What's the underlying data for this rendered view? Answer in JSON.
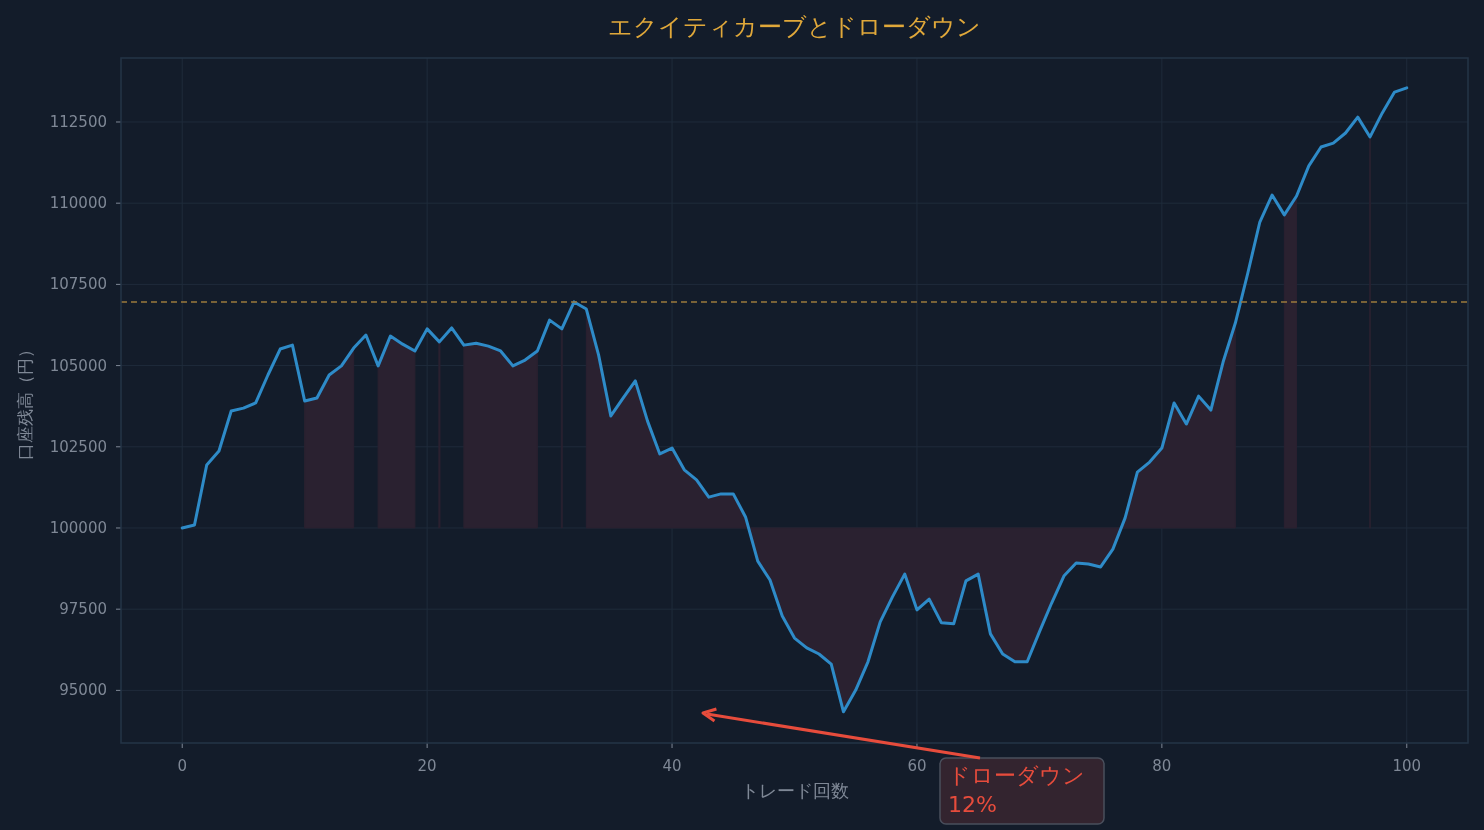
{
  "chart_data": {
    "type": "line",
    "title": "エクイティカーブとドローダウン",
    "xlabel": "トレード回数",
    "ylabel": "口座残高（円）",
    "x": [
      0,
      1,
      2,
      3,
      4,
      5,
      6,
      7,
      8,
      9,
      10,
      11,
      12,
      13,
      14,
      15,
      16,
      17,
      18,
      19,
      20,
      21,
      22,
      23,
      24,
      25,
      26,
      27,
      28,
      29,
      30,
      31,
      32,
      33,
      34,
      35,
      36,
      37,
      38,
      39,
      40,
      41,
      42,
      43,
      44,
      45,
      46,
      47,
      48,
      49,
      50,
      51,
      52,
      53,
      54,
      55,
      56,
      57,
      58,
      59,
      60,
      61,
      62,
      63,
      64,
      65,
      66,
      67,
      68,
      69,
      70,
      71,
      72,
      73,
      74,
      75,
      76,
      77,
      78,
      79,
      80,
      81,
      82,
      83,
      84,
      85,
      86,
      87,
      88,
      89,
      90,
      91,
      92,
      93,
      94,
      95,
      96,
      97,
      98,
      99,
      100
    ],
    "series": [
      {
        "color": "#2e8bc8",
        "values": [
          100000,
          100090,
          101940,
          102370,
          103600,
          103690,
          103850,
          104710,
          105510,
          105630,
          103910,
          104000,
          104710,
          104990,
          105540,
          105940,
          104990,
          105910,
          105660,
          105450,
          106130,
          105730,
          106160,
          105630,
          105690,
          105600,
          105450,
          104990,
          105170,
          105450,
          106400,
          106130,
          106960,
          106740,
          105330,
          103450,
          104000,
          104530,
          103290,
          102280,
          102460,
          101790,
          101480,
          100950,
          101050,
          101050,
          100340,
          98980,
          98400,
          97290,
          96610,
          96310,
          96120,
          95810,
          94340,
          95010,
          95880,
          97110,
          97880,
          98580,
          97480,
          97810,
          97080,
          97050,
          98370,
          98580,
          96740,
          96120,
          95880,
          95880,
          96800,
          97690,
          98520,
          98920,
          98890,
          98800,
          99350,
          100310,
          101720,
          102030,
          102460,
          103850,
          103200,
          104060,
          103630,
          105110,
          106310,
          107820,
          109420,
          110250,
          109640,
          110220,
          111150,
          111730,
          111850,
          112160,
          112650,
          112040,
          112780,
          113420,
          113550
        ]
      },
      {
        "type": "area",
        "color": "#2a2130",
        "values": [
          null,
          null,
          null,
          null,
          null,
          null,
          null,
          null,
          null,
          null,
          103910,
          104000,
          104710,
          104990,
          105540,
          null,
          104990,
          105910,
          105660,
          105450,
          null,
          105730,
          null,
          105630,
          105690,
          105600,
          105450,
          104990,
          105170,
          105450,
          null,
          106130,
          null,
          106740,
          105330,
          103450,
          104000,
          104530,
          103290,
          102280,
          102460,
          101790,
          101480,
          100950,
          101050,
          101050,
          100340,
          98980,
          98400,
          97290,
          96610,
          96310,
          96120,
          95810,
          94340,
          95010,
          95880,
          97110,
          97880,
          98580,
          97480,
          97810,
          97080,
          97050,
          98370,
          98580,
          96740,
          96120,
          95880,
          95880,
          96800,
          97690,
          98520,
          98920,
          98890,
          98800,
          99350,
          100310,
          101720,
          102030,
          102460,
          103850,
          103200,
          104060,
          103630,
          105110,
          106310,
          null,
          null,
          null,
          109640,
          110220,
          null,
          null,
          null,
          null,
          null,
          112040,
          null,
          null,
          null
        ]
      }
    ],
    "xlim": [
      -5,
      105
    ],
    "ylim": [
      93380,
      114470
    ],
    "xticks": [
      0,
      20,
      40,
      60,
      80,
      100
    ],
    "yticks": [
      95000,
      97500,
      100000,
      102500,
      105000,
      107500,
      110000,
      112500
    ],
    "ref_lines": [
      {
        "axis": "y",
        "value": 106960,
        "color": "#9c7a3c",
        "line_style": "dashed"
      }
    ],
    "annotations": [
      "ドローダウン\n12%"
    ],
    "grid": true,
    "marker": "none",
    "line_style": "solid"
  }
}
